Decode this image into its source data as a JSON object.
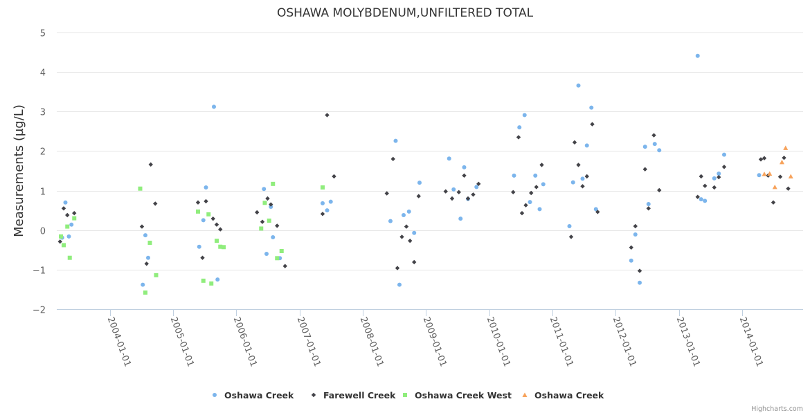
{
  "chart_data": {
    "type": "scatter",
    "title": "OSHAWA MOLYBDENUM,UNFILTERED TOTAL",
    "ylabel": "Measurements (µg/L)",
    "xlabel": "",
    "ylim": [
      -2,
      5
    ],
    "yticks": [
      "−2",
      "−1",
      "0",
      "1",
      "2",
      "3",
      "4",
      "5"
    ],
    "ytick_values": [
      -2,
      -1,
      0,
      1,
      2,
      3,
      4,
      5
    ],
    "xlim": [
      "2003-03-01",
      "2014-12-20"
    ],
    "xticks": [
      "2004-01-01",
      "2005-01-01",
      "2006-01-01",
      "2007-01-01",
      "2008-01-01",
      "2009-01-01",
      "2010-01-01",
      "2011-01-01",
      "2012-01-01",
      "2013-01-01",
      "2014-01-01"
    ],
    "grid": true,
    "legend_position": "bottom-center",
    "credits": "Highcharts.com",
    "series": [
      {
        "name": "Oshawa Creek",
        "marker": "circle",
        "color": "#7cb5ec",
        "points": [
          [
            "2003-04-01",
            -0.19
          ],
          [
            "2003-04-20",
            0.7
          ],
          [
            "2003-05-10",
            -0.16
          ],
          [
            "2003-05-25",
            0.14
          ],
          [
            "2004-07-10",
            -1.38
          ],
          [
            "2004-07-25",
            -0.13
          ],
          [
            "2004-08-10",
            -0.7
          ],
          [
            "2005-06-01",
            -0.42
          ],
          [
            "2005-06-25",
            0.25
          ],
          [
            "2005-07-10",
            1.08
          ],
          [
            "2005-08-25",
            3.12
          ],
          [
            "2005-09-15",
            -1.25
          ],
          [
            "2006-06-10",
            1.04
          ],
          [
            "2006-06-25",
            -0.6
          ],
          [
            "2006-07-20",
            0.59
          ],
          [
            "2006-08-01",
            -0.18
          ],
          [
            "2006-09-10",
            -0.71
          ],
          [
            "2007-05-15",
            0.68
          ],
          [
            "2007-06-10",
            0.5
          ],
          [
            "2007-07-01",
            0.72
          ],
          [
            "2008-06-10",
            0.23
          ],
          [
            "2008-07-10",
            2.26
          ],
          [
            "2008-08-01",
            -1.38
          ],
          [
            "2008-08-25",
            0.38
          ],
          [
            "2008-09-25",
            0.47
          ],
          [
            "2008-10-25",
            -0.07
          ],
          [
            "2008-11-25",
            1.2
          ],
          [
            "2009-05-15",
            1.81
          ],
          [
            "2009-06-10",
            1.03
          ],
          [
            "2009-07-20",
            0.29
          ],
          [
            "2009-08-10",
            1.59
          ],
          [
            "2009-09-01",
            0.79
          ],
          [
            "2009-10-20",
            1.09
          ],
          [
            "2010-05-25",
            1.38
          ],
          [
            "2010-06-25",
            2.6
          ],
          [
            "2010-07-25",
            2.91
          ],
          [
            "2010-08-25",
            0.71
          ],
          [
            "2010-09-25",
            1.38
          ],
          [
            "2010-10-20",
            0.53
          ],
          [
            "2010-11-10",
            1.16
          ],
          [
            "2011-04-10",
            0.1
          ],
          [
            "2011-05-01",
            1.21
          ],
          [
            "2011-06-01",
            3.66
          ],
          [
            "2011-06-25",
            1.3
          ],
          [
            "2011-07-20",
            2.14
          ],
          [
            "2011-08-15",
            3.1
          ],
          [
            "2011-09-10",
            0.53
          ],
          [
            "2012-04-01",
            -0.77
          ],
          [
            "2012-04-25",
            -0.11
          ],
          [
            "2012-05-20",
            -1.33
          ],
          [
            "2012-06-20",
            2.11
          ],
          [
            "2012-07-10",
            0.66
          ],
          [
            "2012-08-15",
            2.18
          ],
          [
            "2012-09-10",
            2.02
          ],
          [
            "2013-04-20",
            4.41
          ],
          [
            "2013-05-10",
            0.78
          ],
          [
            "2013-06-01",
            0.74
          ],
          [
            "2013-07-25",
            1.31
          ],
          [
            "2013-08-20",
            1.43
          ],
          [
            "2013-09-20",
            1.91
          ],
          [
            "2014-04-10",
            1.39
          ]
        ]
      },
      {
        "name": "Farewell Creek",
        "marker": "diamond",
        "color": "#434348",
        "points": [
          [
            "2003-03-20",
            -0.29
          ],
          [
            "2003-04-10",
            0.55
          ],
          [
            "2003-05-01",
            0.38
          ],
          [
            "2003-06-10",
            0.43
          ],
          [
            "2004-07-05",
            0.09
          ],
          [
            "2004-08-01",
            -0.85
          ],
          [
            "2004-08-25",
            1.66
          ],
          [
            "2004-09-20",
            0.67
          ],
          [
            "2005-05-25",
            0.7
          ],
          [
            "2005-06-20",
            -0.7
          ],
          [
            "2005-07-10",
            0.73
          ],
          [
            "2005-08-20",
            0.29
          ],
          [
            "2005-09-10",
            0.14
          ],
          [
            "2005-10-01",
            0.02
          ],
          [
            "2006-05-01",
            0.45
          ],
          [
            "2006-06-01",
            0.21
          ],
          [
            "2006-07-01",
            0.8
          ],
          [
            "2006-07-20",
            0.65
          ],
          [
            "2006-08-25",
            0.11
          ],
          [
            "2006-10-10",
            -0.91
          ],
          [
            "2007-05-15",
            0.41
          ],
          [
            "2007-06-10",
            2.91
          ],
          [
            "2007-07-20",
            1.36
          ],
          [
            "2008-05-20",
            0.93
          ],
          [
            "2008-06-25",
            1.8
          ],
          [
            "2008-07-20",
            -0.96
          ],
          [
            "2008-08-15",
            -0.17
          ],
          [
            "2008-09-10",
            0.09
          ],
          [
            "2008-10-01",
            -0.27
          ],
          [
            "2008-10-25",
            -0.81
          ],
          [
            "2008-11-20",
            0.86
          ],
          [
            "2009-04-25",
            0.98
          ],
          [
            "2009-06-01",
            0.8
          ],
          [
            "2009-07-10",
            0.96
          ],
          [
            "2009-08-10",
            1.38
          ],
          [
            "2009-09-01",
            0.8
          ],
          [
            "2009-10-01",
            0.9
          ],
          [
            "2009-11-01",
            1.17
          ],
          [
            "2010-05-20",
            0.96
          ],
          [
            "2010-06-20",
            2.35
          ],
          [
            "2010-07-10",
            0.43
          ],
          [
            "2010-08-01",
            0.63
          ],
          [
            "2010-09-01",
            0.94
          ],
          [
            "2010-10-01",
            1.09
          ],
          [
            "2010-11-01",
            1.65
          ],
          [
            "2011-04-20",
            -0.17
          ],
          [
            "2011-05-10",
            2.22
          ],
          [
            "2011-06-01",
            1.65
          ],
          [
            "2011-06-25",
            1.11
          ],
          [
            "2011-07-20",
            1.36
          ],
          [
            "2011-08-20",
            2.68
          ],
          [
            "2011-09-20",
            0.46
          ],
          [
            "2012-04-01",
            -0.44
          ],
          [
            "2012-04-25",
            0.1
          ],
          [
            "2012-05-20",
            -1.03
          ],
          [
            "2012-06-20",
            1.54
          ],
          [
            "2012-07-10",
            0.55
          ],
          [
            "2012-08-10",
            2.4
          ],
          [
            "2012-09-10",
            1.01
          ],
          [
            "2013-04-20",
            0.84
          ],
          [
            "2013-05-10",
            1.36
          ],
          [
            "2013-06-01",
            1.12
          ],
          [
            "2013-07-25",
            1.08
          ],
          [
            "2013-08-20",
            1.34
          ],
          [
            "2013-09-20",
            1.6
          ],
          [
            "2014-04-20",
            1.79
          ],
          [
            "2014-05-10",
            1.82
          ],
          [
            "2014-06-01",
            1.38
          ],
          [
            "2014-07-01",
            0.7
          ],
          [
            "2014-08-10",
            1.35
          ],
          [
            "2014-09-01",
            1.83
          ],
          [
            "2014-09-25",
            1.05
          ]
        ]
      },
      {
        "name": "Oshawa Creek West",
        "marker": "square",
        "color": "#90ed7d",
        "points": [
          [
            "2003-03-25",
            -0.16
          ],
          [
            "2003-04-10",
            -0.38
          ],
          [
            "2003-05-01",
            0.09
          ],
          [
            "2003-05-15",
            -0.7
          ],
          [
            "2003-06-10",
            0.3
          ],
          [
            "2004-06-25",
            1.05
          ],
          [
            "2004-07-25",
            -1.58
          ],
          [
            "2004-08-20",
            -0.32
          ],
          [
            "2004-09-25",
            -1.14
          ],
          [
            "2005-05-25",
            0.47
          ],
          [
            "2005-06-25",
            -1.28
          ],
          [
            "2005-07-25",
            0.4
          ],
          [
            "2005-08-10",
            -1.35
          ],
          [
            "2005-09-10",
            -0.27
          ],
          [
            "2005-10-01",
            -0.42
          ],
          [
            "2005-10-20",
            -0.43
          ],
          [
            "2006-05-25",
            0.04
          ],
          [
            "2006-06-15",
            0.69
          ],
          [
            "2006-07-10",
            0.24
          ],
          [
            "2006-08-01",
            1.17
          ],
          [
            "2006-08-25",
            -0.71
          ],
          [
            "2006-09-20",
            -0.53
          ],
          [
            "2007-05-15",
            1.08
          ]
        ]
      },
      {
        "name": "Oshawa Creek",
        "marker": "triangle",
        "color": "#f7a35c",
        "points": [
          [
            "2014-05-10",
            1.42
          ],
          [
            "2014-06-10",
            1.43
          ],
          [
            "2014-07-10",
            1.09
          ],
          [
            "2014-08-20",
            1.72
          ],
          [
            "2014-09-10",
            2.08
          ],
          [
            "2014-10-10",
            1.36
          ]
        ]
      }
    ]
  }
}
